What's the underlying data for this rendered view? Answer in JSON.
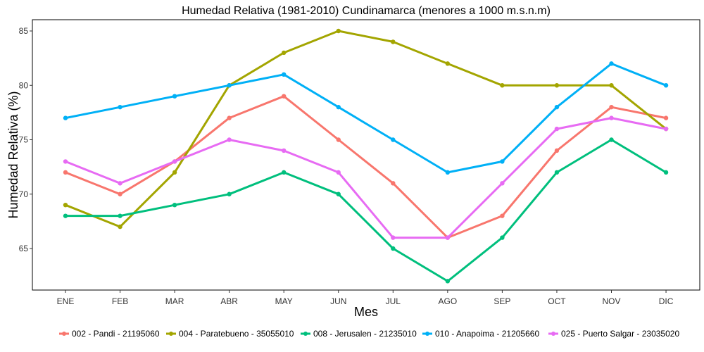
{
  "chart_data": {
    "type": "line",
    "title": "Humedad Relativa (1981-2010) Cundinamarca (menores a 1000 m.s.n.m)",
    "xlabel": "Mes",
    "ylabel": "Humedad Relativa (%)",
    "categories": [
      "ENE",
      "FEB",
      "MAR",
      "ABR",
      "MAY",
      "JUN",
      "JUL",
      "AGO",
      "SEP",
      "OCT",
      "NOV",
      "DIC"
    ],
    "yticks": [
      65,
      70,
      75,
      80,
      85
    ],
    "ylim": [
      61,
      86
    ],
    "grid": false,
    "legend_position": "bottom",
    "series": [
      {
        "name": "002 - Pandi - 21195060",
        "color": "#F8766D",
        "values": [
          72,
          70,
          73,
          77,
          79,
          75,
          71,
          66,
          68,
          74,
          78,
          77
        ]
      },
      {
        "name": "004 - Paratebueno - 35055010",
        "color": "#A3A500",
        "values": [
          69,
          67,
          72,
          80,
          83,
          85,
          84,
          82,
          80,
          80,
          80,
          76
        ]
      },
      {
        "name": "008 - Jerusalen - 21235010",
        "color": "#00BF7D",
        "values": [
          68,
          68,
          69,
          70,
          72,
          70,
          65,
          62,
          66,
          72,
          75,
          72
        ]
      },
      {
        "name": "010 - Anapoima - 21205660",
        "color": "#00B0F6",
        "values": [
          77,
          78,
          79,
          80,
          81,
          78,
          75,
          72,
          73,
          78,
          82,
          80
        ]
      },
      {
        "name": "025 - Puerto Salgar - 23035020",
        "color": "#E76BF3",
        "values": [
          73,
          71,
          73,
          75,
          74,
          72,
          66,
          66,
          71,
          76,
          77,
          76
        ]
      }
    ]
  }
}
